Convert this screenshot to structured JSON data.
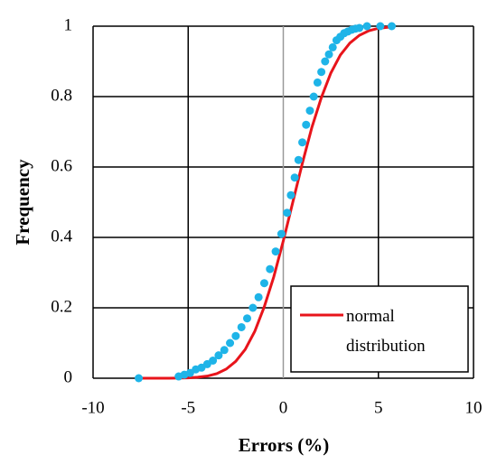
{
  "chart_data": {
    "type": "scatter",
    "xlabel": "Errors (%)",
    "ylabel": "Frequency",
    "xlim": [
      -10,
      10
    ],
    "xticks": [
      -10,
      -5,
      0,
      5,
      10
    ],
    "ylim": [
      0,
      1
    ],
    "yticks": [
      0,
      0.2,
      0.4,
      0.6,
      0.8,
      1
    ],
    "grid": true,
    "legend": "lower right",
    "series": [
      {
        "name": "normal distribution",
        "color": "#e8141b",
        "style": "line",
        "x": [
          -7.5,
          -6,
          -5,
          -4.5,
          -4,
          -3.5,
          -3,
          -2.5,
          -2,
          -1.5,
          -1,
          -0.5,
          0,
          0.5,
          1,
          1.5,
          2,
          2.5,
          3,
          3.5,
          4,
          4.5,
          5,
          5.7
        ],
        "values": [
          0,
          0,
          0.001,
          0.003,
          0.006,
          0.013,
          0.026,
          0.048,
          0.082,
          0.133,
          0.203,
          0.288,
          0.39,
          0.5,
          0.61,
          0.712,
          0.797,
          0.867,
          0.918,
          0.952,
          0.974,
          0.987,
          0.994,
          0.998
        ]
      },
      {
        "color": "#1eb4e8",
        "style": "markers",
        "x": [
          -7.6,
          -5.5,
          -5.2,
          -4.9,
          -4.6,
          -4.3,
          -4.0,
          -3.7,
          -3.4,
          -3.1,
          -2.8,
          -2.5,
          -2.2,
          -1.9,
          -1.6,
          -1.3,
          -1.0,
          -0.7,
          -0.4,
          -0.1,
          0.2,
          0.4,
          0.6,
          0.8,
          1.0,
          1.2,
          1.4,
          1.6,
          1.8,
          2.0,
          2.2,
          2.4,
          2.6,
          2.8,
          3.0,
          3.2,
          3.4,
          3.6,
          3.8,
          4.0,
          4.4,
          5.1,
          5.7
        ],
        "values": [
          0,
          0.005,
          0.01,
          0.015,
          0.025,
          0.03,
          0.04,
          0.05,
          0.065,
          0.08,
          0.1,
          0.12,
          0.145,
          0.17,
          0.2,
          0.23,
          0.27,
          0.31,
          0.36,
          0.41,
          0.47,
          0.52,
          0.57,
          0.62,
          0.67,
          0.72,
          0.76,
          0.8,
          0.84,
          0.87,
          0.9,
          0.92,
          0.94,
          0.96,
          0.97,
          0.98,
          0.985,
          0.99,
          0.993,
          0.995,
          1,
          1,
          1
        ]
      }
    ]
  }
}
